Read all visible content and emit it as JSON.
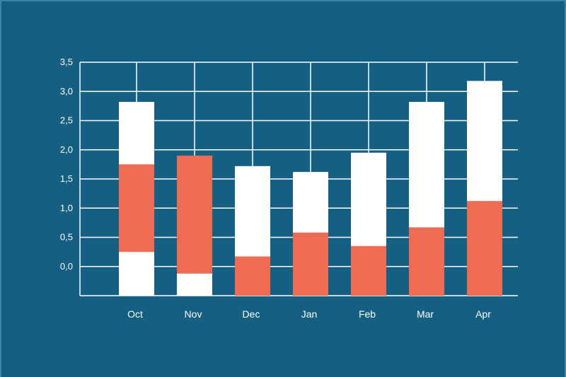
{
  "chart_data": {
    "type": "bar",
    "stacked": true,
    "categories": [
      "Oct",
      "Nov",
      "Dec",
      "Jan",
      "Feb",
      "Mar",
      "Apr"
    ],
    "y_tick_labels": [
      "0,0",
      "0,5",
      "1,0",
      "1,5",
      "2,0",
      "2,5",
      "3,0",
      "3,5"
    ],
    "ylim": [
      -0.5,
      3.5
    ],
    "grid": true,
    "series": [
      {
        "color": "#ffffff",
        "ranges": [
          [
            -0.5,
            0.25
          ],
          [
            -0.5,
            -0.12
          ],
          [
            0.17,
            1.72
          ],
          [
            0.58,
            1.62
          ],
          [
            0.35,
            1.95
          ],
          [
            0.67,
            2.82
          ],
          [
            1.12,
            3.18
          ]
        ]
      },
      {
        "color": "#ef6b52",
        "ranges": [
          [
            0.25,
            1.75
          ],
          [
            -0.12,
            1.9
          ],
          [
            -0.5,
            0.17
          ],
          [
            -0.5,
            0.58
          ],
          [
            -0.5,
            0.35
          ],
          [
            -0.5,
            0.67
          ],
          [
            -0.5,
            1.12
          ]
        ]
      },
      {
        "color": "#ffffff",
        "ranges": [
          [
            1.75,
            2.82
          ],
          [
            1.9,
            1.9
          ],
          [
            1.72,
            1.72
          ],
          [
            1.62,
            1.62
          ],
          [
            1.95,
            1.95
          ],
          [
            2.82,
            2.82
          ],
          [
            3.18,
            3.18
          ]
        ]
      }
    ]
  },
  "theme": {
    "background": "#145f82",
    "grid": "#ffffff",
    "bar_white": "#ffffff",
    "bar_coral": "#ef6b52"
  }
}
